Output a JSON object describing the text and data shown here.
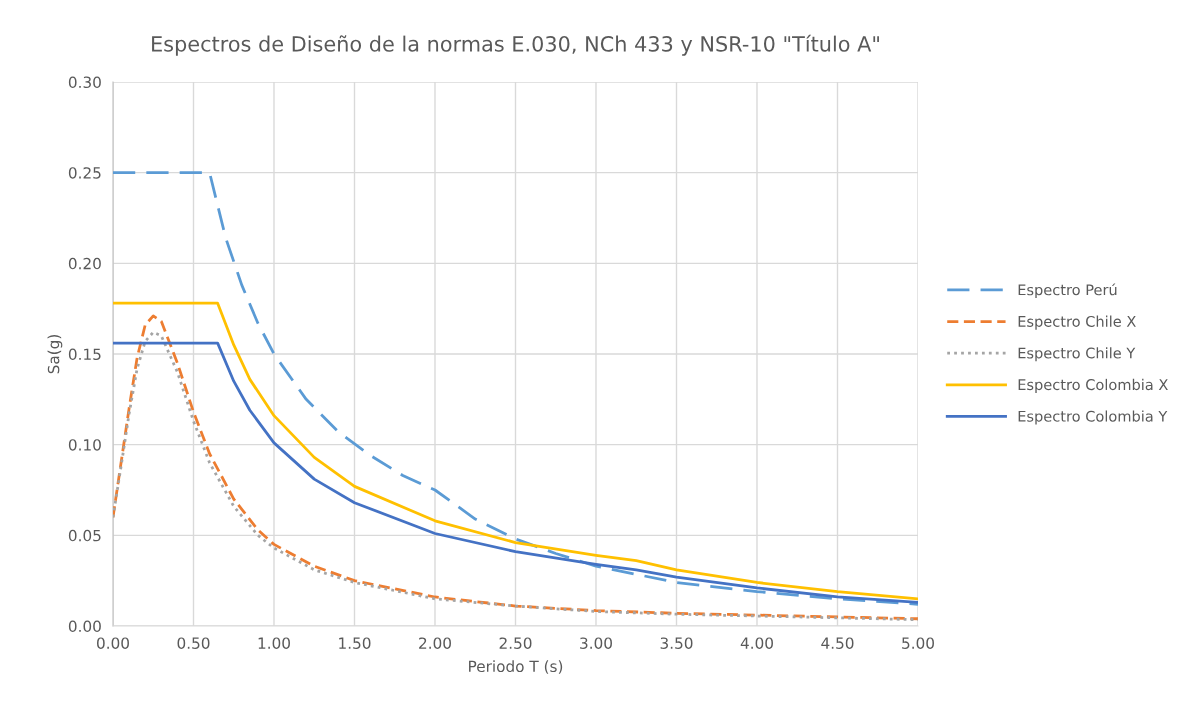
{
  "chart_data": {
    "type": "line",
    "title": "Espectros de Diseño de la normas E.030, NCh 433 y NSR-10 \"Título A\"",
    "xlabel": "Periodo T (s)",
    "ylabel": "Sa(g)",
    "xlim": [
      0,
      5
    ],
    "xticks": [
      {
        "value": 0,
        "label": "0.00"
      },
      {
        "value": 0.5,
        "label": "0.50"
      },
      {
        "value": 1,
        "label": "1.00"
      },
      {
        "value": 1.5,
        "label": "1.50"
      },
      {
        "value": 2,
        "label": "2.00"
      },
      {
        "value": 2.5,
        "label": "2.50"
      },
      {
        "value": 3,
        "label": "3.00"
      },
      {
        "value": 3.5,
        "label": "3.50"
      },
      {
        "value": 4,
        "label": "4.00"
      },
      {
        "value": 4.5,
        "label": "4.50"
      },
      {
        "value": 5,
        "label": "5.00"
      }
    ],
    "ylim": [
      0,
      0.3
    ],
    "yticks": [
      {
        "value": 0,
        "label": "0.00"
      },
      {
        "value": 0.05,
        "label": "0.05"
      },
      {
        "value": 0.1,
        "label": "0.10"
      },
      {
        "value": 0.15,
        "label": "0.15"
      },
      {
        "value": 0.2,
        "label": "0.20"
      },
      {
        "value": 0.25,
        "label": "0.25"
      },
      {
        "value": 0.3,
        "label": "0.30"
      }
    ],
    "grid": true,
    "legend": "right",
    "marker": "none",
    "series": [
      {
        "name": "Espectro Perú",
        "color": "#5b9bd5",
        "line_style": "dashed",
        "x": [
          0,
          0.6,
          0.7,
          0.8,
          0.9,
          1.0,
          1.2,
          1.4,
          1.6,
          1.8,
          2.0,
          2.25,
          2.5,
          2.75,
          3.0,
          3.5,
          4.0,
          4.5,
          5.0
        ],
        "values": [
          0.25,
          0.25,
          0.214,
          0.188,
          0.167,
          0.15,
          0.125,
          0.107,
          0.094,
          0.083,
          0.075,
          0.059,
          0.048,
          0.04,
          0.033,
          0.024,
          0.019,
          0.015,
          0.012
        ]
      },
      {
        "name": "Espectro Chile X",
        "color": "#ed7d31",
        "line_style": "dashed",
        "x": [
          0,
          0.05,
          0.1,
          0.15,
          0.2,
          0.25,
          0.3,
          0.4,
          0.5,
          0.6,
          0.75,
          0.9,
          1.0,
          1.25,
          1.5,
          2.0,
          2.5,
          3.0,
          3.5,
          4.0,
          4.5,
          5.0
        ],
        "values": [
          0.06,
          0.09,
          0.12,
          0.148,
          0.166,
          0.171,
          0.168,
          0.145,
          0.118,
          0.095,
          0.07,
          0.053,
          0.045,
          0.033,
          0.025,
          0.016,
          0.011,
          0.0085,
          0.007,
          0.006,
          0.005,
          0.004
        ]
      },
      {
        "name": "Espectro Chile Y",
        "color": "#a5a5a5",
        "line_style": "dotted",
        "x": [
          0,
          0.05,
          0.1,
          0.15,
          0.2,
          0.25,
          0.3,
          0.4,
          0.5,
          0.6,
          0.75,
          0.9,
          1.0,
          1.25,
          1.5,
          2.0,
          2.5,
          3.0,
          3.5,
          4.0,
          4.5,
          5.0
        ],
        "values": [
          0.06,
          0.088,
          0.117,
          0.142,
          0.157,
          0.162,
          0.16,
          0.14,
          0.113,
          0.09,
          0.066,
          0.05,
          0.043,
          0.031,
          0.024,
          0.015,
          0.011,
          0.008,
          0.0065,
          0.0055,
          0.0045,
          0.0035
        ]
      },
      {
        "name": "Espectro Colombia X",
        "color": "#ffc000",
        "line_style": "solid",
        "x": [
          0,
          0.65,
          0.75,
          0.85,
          1.0,
          1.25,
          1.5,
          2.0,
          2.5,
          3.0,
          3.25,
          3.5,
          4.0,
          4.5,
          5.0
        ],
        "values": [
          0.178,
          0.178,
          0.155,
          0.136,
          0.116,
          0.093,
          0.077,
          0.058,
          0.046,
          0.039,
          0.036,
          0.031,
          0.024,
          0.019,
          0.015
        ]
      },
      {
        "name": "Espectro Colombia Y",
        "color": "#4472c4",
        "line_style": "solid",
        "x": [
          0,
          0.65,
          0.75,
          0.85,
          1.0,
          1.25,
          1.5,
          2.0,
          2.5,
          3.0,
          3.25,
          3.5,
          4.0,
          4.5,
          5.0
        ],
        "values": [
          0.156,
          0.156,
          0.135,
          0.119,
          0.101,
          0.081,
          0.068,
          0.051,
          0.041,
          0.034,
          0.031,
          0.027,
          0.021,
          0.016,
          0.013
        ]
      }
    ]
  }
}
